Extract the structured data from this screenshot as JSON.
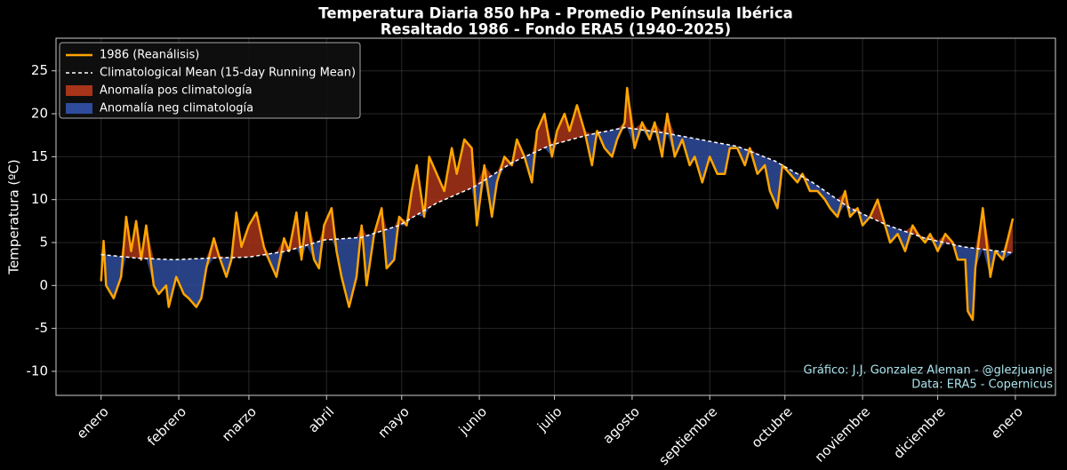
{
  "chart_data": {
    "type": "line",
    "title": "Temperatura Diaria 850 hPa - Promedio Península Ibérica",
    "subtitle": "Resaltado 1986 - Fondo ERA5 (1940–2025)",
    "ylabel": "Temperatura (ºC)",
    "xlim": [
      -17,
      382
    ],
    "ylim": [
      -12.8,
      28.8
    ],
    "xticks": [
      {
        "value": 1,
        "label": "enero"
      },
      {
        "value": 32,
        "label": "febrero"
      },
      {
        "value": 60,
        "label": "marzo"
      },
      {
        "value": 91,
        "label": "abril"
      },
      {
        "value": 121,
        "label": "mayo"
      },
      {
        "value": 152,
        "label": "junio"
      },
      {
        "value": 182,
        "label": "julio"
      },
      {
        "value": 213,
        "label": "agosto"
      },
      {
        "value": 244,
        "label": "septiembre"
      },
      {
        "value": 274,
        "label": "octubre"
      },
      {
        "value": 305,
        "label": "noviembre"
      },
      {
        "value": 335,
        "label": "diciembre"
      },
      {
        "value": 366,
        "label": "enero"
      }
    ],
    "yticks": [
      -10,
      -5,
      0,
      5,
      10,
      15,
      20,
      25
    ],
    "grid": true,
    "legend": "upper left",
    "series": [
      {
        "name": "1986 (Reanálisis)",
        "color": "#ffa500",
        "x": [
          1,
          2,
          3,
          6,
          9,
          11,
          13,
          15,
          17,
          19,
          22,
          24,
          27,
          28,
          31,
          34,
          36,
          39,
          41,
          43,
          46,
          48,
          51,
          53,
          55,
          57,
          60,
          63,
          66,
          68,
          71,
          74,
          76,
          79,
          81,
          83,
          86,
          88,
          90,
          93,
          95,
          97,
          100,
          103,
          105,
          107,
          110,
          113,
          115,
          118,
          120,
          123,
          125,
          127,
          130,
          132,
          135,
          138,
          141,
          143,
          146,
          149,
          151,
          154,
          157,
          159,
          162,
          165,
          167,
          170,
          173,
          175,
          178,
          181,
          183,
          186,
          188,
          191,
          194,
          197,
          199,
          202,
          205,
          207,
          210,
          211,
          214,
          217,
          220,
          222,
          225,
          227,
          230,
          233,
          236,
          238,
          241,
          244,
          247,
          250,
          252,
          255,
          258,
          260,
          263,
          266,
          268,
          271,
          273,
          276,
          279,
          281,
          284,
          287,
          290,
          292,
          295,
          298,
          300,
          303,
          305,
          308,
          311,
          314,
          316,
          319,
          322,
          325,
          327,
          330,
          332,
          335,
          338,
          341,
          343,
          346,
          347,
          349,
          350,
          353,
          356,
          358,
          361,
          365
        ],
        "values": [
          0.5,
          5.2,
          0,
          -1.5,
          1,
          8,
          4,
          7.5,
          3,
          7,
          0,
          -1,
          0,
          -2.5,
          1,
          -1,
          -1.5,
          -2.5,
          -1.5,
          2,
          5.5,
          3.5,
          1,
          3,
          8.5,
          4.5,
          7,
          8.5,
          4.5,
          3,
          1,
          5.5,
          4,
          8.5,
          3,
          8.5,
          3,
          2,
          7,
          9,
          4,
          1,
          -2.5,
          1,
          7,
          0,
          6,
          9,
          2,
          3,
          8,
          7,
          11,
          14,
          8,
          15,
          13,
          11,
          16,
          13,
          17,
          16,
          7,
          14,
          8,
          12,
          15,
          14,
          17,
          15,
          12,
          18,
          20,
          15,
          18,
          20,
          18,
          21,
          18,
          14,
          18,
          16,
          15,
          17,
          19,
          23,
          16,
          19,
          17,
          19,
          15,
          20,
          15,
          17,
          14,
          15,
          12,
          15,
          13,
          13,
          16,
          16,
          14,
          16,
          13,
          14,
          11,
          9,
          14,
          13,
          12,
          13,
          11,
          11,
          10,
          9,
          8,
          11,
          8,
          9,
          7,
          8,
          10,
          7,
          5,
          6,
          4,
          7,
          6,
          5,
          6,
          4,
          6,
          5,
          3,
          3,
          -3,
          -4,
          2,
          9,
          1,
          4,
          3,
          7.8
        ]
      },
      {
        "name": "Climatological Mean (15-day Running Mean)",
        "color": "#ffffff",
        "dashed": true,
        "x": [
          1,
          15,
          30,
          45,
          60,
          75,
          90,
          105,
          120,
          135,
          150,
          165,
          180,
          195,
          210,
          225,
          240,
          255,
          270,
          285,
          300,
          315,
          330,
          345,
          365
        ],
        "values": [
          3.6,
          3.2,
          3.0,
          3.2,
          3.3,
          4.0,
          5.3,
          5.6,
          7.0,
          9.6,
          11.5,
          14.3,
          16.3,
          17.5,
          18.4,
          17.8,
          17.0,
          16.2,
          14.5,
          12.0,
          9.0,
          7.0,
          5.5,
          4.5,
          3.8
        ]
      }
    ],
    "fills": [
      {
        "name": "Anomalía pos climatología",
        "color": "#a8341a"
      },
      {
        "name": "Anomalía neg climatología",
        "color": "#2f4c9c"
      }
    ],
    "annotations": [
      "Gráfico: J.J. Gonzalez Aleman - @glezjuanje",
      "Data: ERA5 - Copernicus"
    ]
  }
}
